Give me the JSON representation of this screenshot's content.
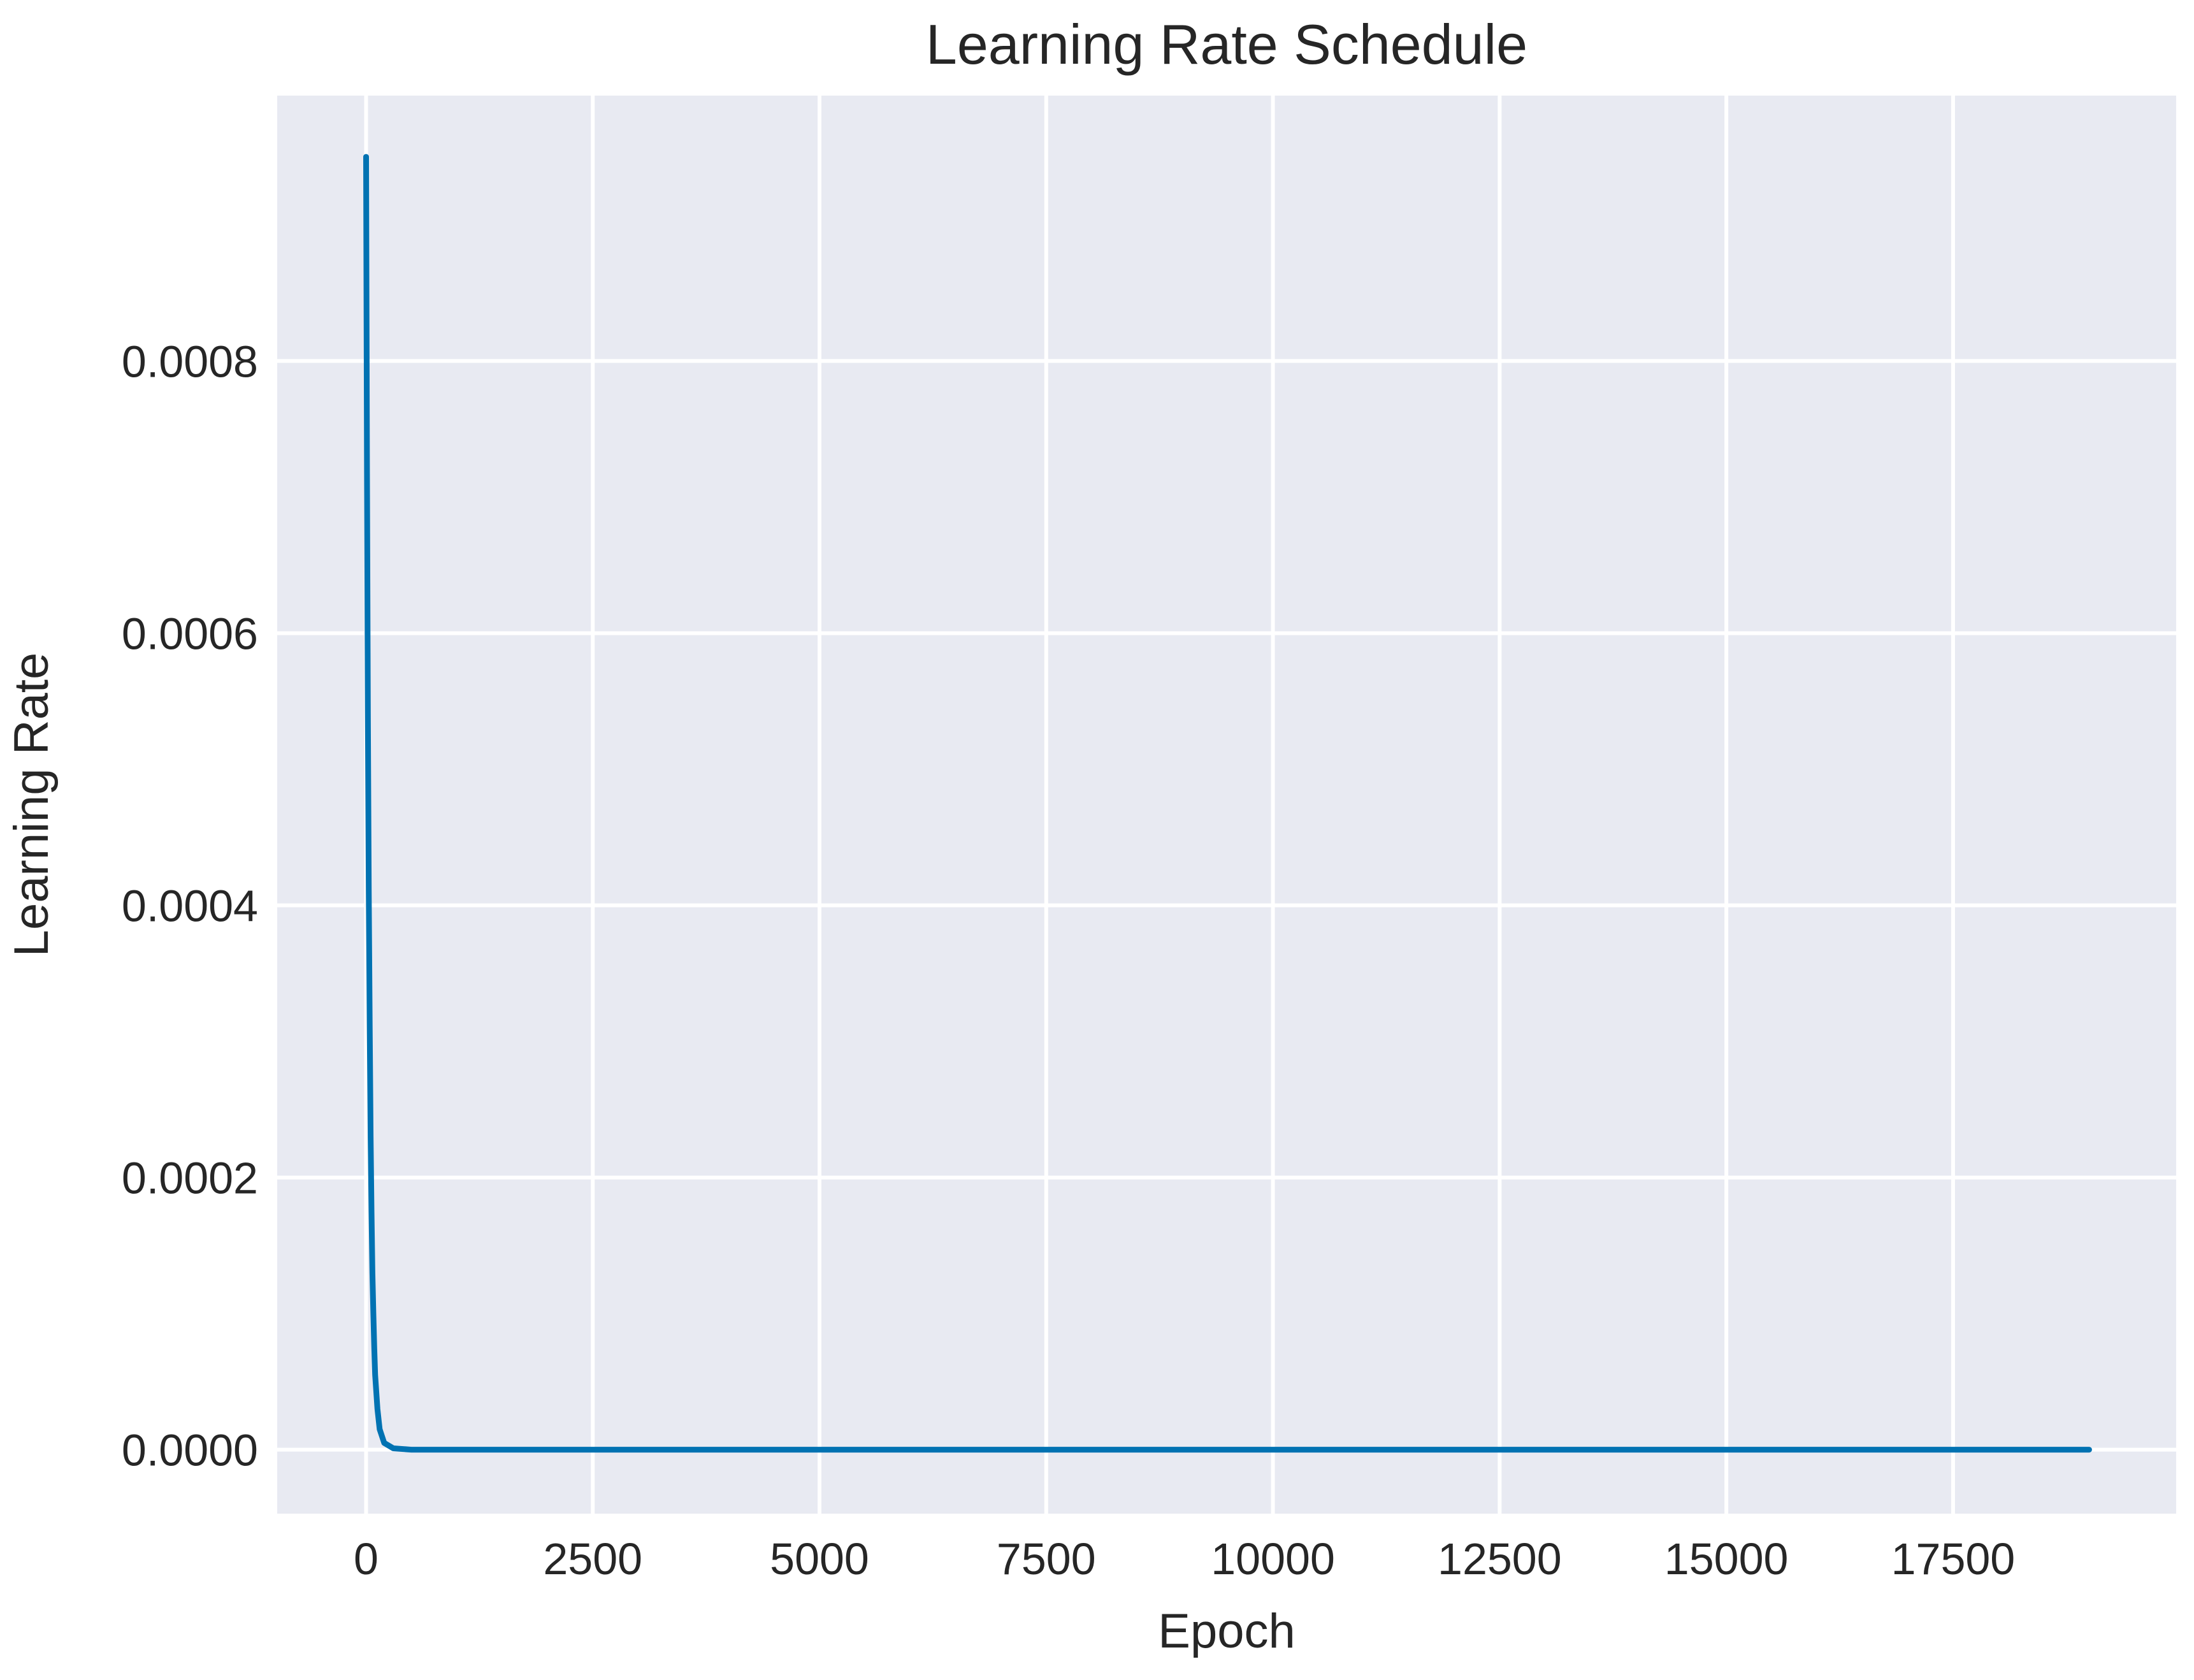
{
  "chart_data": {
    "type": "line",
    "title": "Learning Rate Schedule",
    "xlabel": "Epoch",
    "ylabel": "Learning Rate",
    "xlim": [
      -980,
      19960
    ],
    "ylim": [
      -4.7e-05,
      0.000995
    ],
    "grid": true,
    "legend": "none",
    "colors": {
      "plot_background": "#e8eaf2",
      "grid": "#ffffff",
      "series": "#0072b2"
    },
    "x_ticks": [
      0,
      2500,
      5000,
      7500,
      10000,
      12500,
      15000,
      17500
    ],
    "x_tick_labels": [
      "0",
      "2500",
      "5000",
      "7500",
      "10000",
      "12500",
      "15000",
      "17500"
    ],
    "y_ticks": [
      0.0,
      0.0002,
      0.0004,
      0.0006,
      0.0008
    ],
    "y_tick_labels": [
      "0.0000",
      "0.0002",
      "0.0004",
      "0.0006",
      "0.0008"
    ],
    "series": [
      {
        "x": [
          0,
          10,
          20,
          30,
          40,
          50,
          60,
          70,
          80,
          90,
          100,
          125,
          150,
          200,
          300,
          500,
          1000,
          2500,
          5000,
          7500,
          10000,
          12500,
          15000,
          17500,
          19000
        ],
        "y": [
          0.00095,
          0.00072,
          0.00054,
          0.00041,
          0.00031,
          0.00023,
          0.000175,
          0.00013,
          0.0001,
          7.5e-05,
          5.5e-05,
          3e-05,
          1.5e-05,
          5e-06,
          1e-06,
          0.0,
          0.0,
          0.0,
          0.0,
          0.0,
          0.0,
          0.0,
          0.0,
          0.0,
          0.0
        ]
      }
    ]
  }
}
